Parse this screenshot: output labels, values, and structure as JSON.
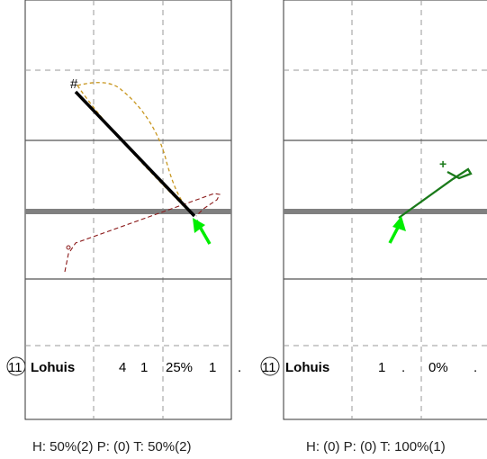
{
  "panels": [
    {
      "row": {
        "badge": "11",
        "name": "Lohuis",
        "c1": "4",
        "c2": "1",
        "pct": "25%",
        "c3": "1",
        "c4": "."
      },
      "start_marker": "#",
      "summary": "H: 50%(2)  P: (0)  T: 50%(2)"
    },
    {
      "row": {
        "badge": "11",
        "name": "Lohuis",
        "c1": "1",
        "c2": ".",
        "pct": "0%",
        "c3": "."
      },
      "start_marker": "+",
      "summary": "H: (0)  P: (0)  T: 100%(1)"
    }
  ],
  "colors": {
    "arrow": "#00ee00",
    "dark_green": "#1a7a1a",
    "gold": "#c8961e",
    "dark_red": "#8b1a1a",
    "thick_line": "#808080",
    "grid": "#999999"
  }
}
